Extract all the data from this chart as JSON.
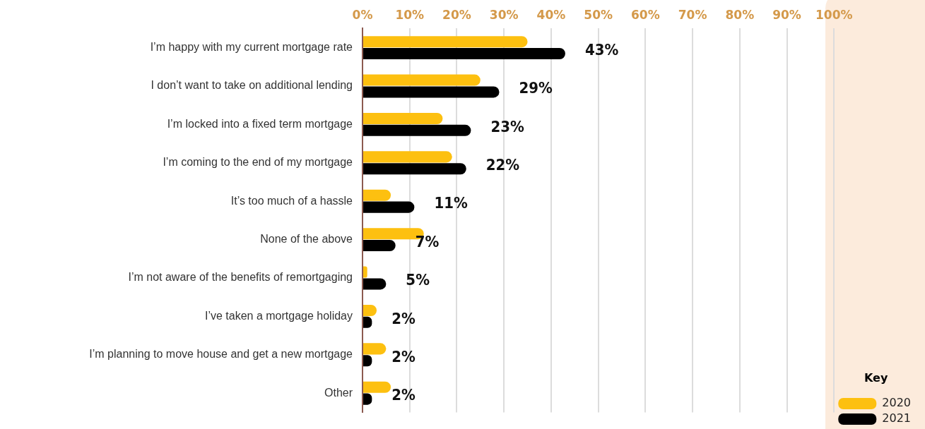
{
  "chart_data": {
    "type": "bar",
    "orientation": "horizontal",
    "categories": [
      "I’m happy with my current mortgage rate",
      "I don’t want to take on additional lending",
      "I’m locked into a fixed term mortgage",
      "I’m coming to the end of my mortgage",
      "It’s too much of a hassle",
      "None of the above",
      "I’m not aware of the benefits of remortgaging",
      "I’ve taken a mortgage holiday",
      "I’m planning to move house and get a new mortgage",
      "Other"
    ],
    "series": [
      {
        "name": "2020",
        "color": "#fdc010",
        "values": [
          35,
          25,
          17,
          19,
          6,
          13,
          1,
          3,
          5,
          6
        ]
      },
      {
        "name": "2021",
        "color": "#000000",
        "values": [
          43,
          29,
          23,
          22,
          11,
          7,
          5,
          2,
          2,
          2
        ],
        "value_labels": [
          "43%",
          "29%",
          "23%",
          "22%",
          "11%",
          "7%",
          "5%",
          "2%",
          "2%",
          "2%"
        ]
      }
    ],
    "xlim": [
      0,
      100
    ],
    "xticks": [
      {
        "value": 0,
        "label": "0%"
      },
      {
        "value": 10,
        "label": "10%"
      },
      {
        "value": 20,
        "label": "20%"
      },
      {
        "value": 30,
        "label": "30%"
      },
      {
        "value": 40,
        "label": "40%"
      },
      {
        "value": 50,
        "label": "50%"
      },
      {
        "value": 60,
        "label": "60%"
      },
      {
        "value": 70,
        "label": "70%"
      },
      {
        "value": 80,
        "label": "80%"
      },
      {
        "value": 90,
        "label": "90%"
      },
      {
        "value": 100,
        "label": "100%"
      }
    ],
    "grid": "x",
    "legend": "bottom right",
    "legend_title": "Key"
  }
}
